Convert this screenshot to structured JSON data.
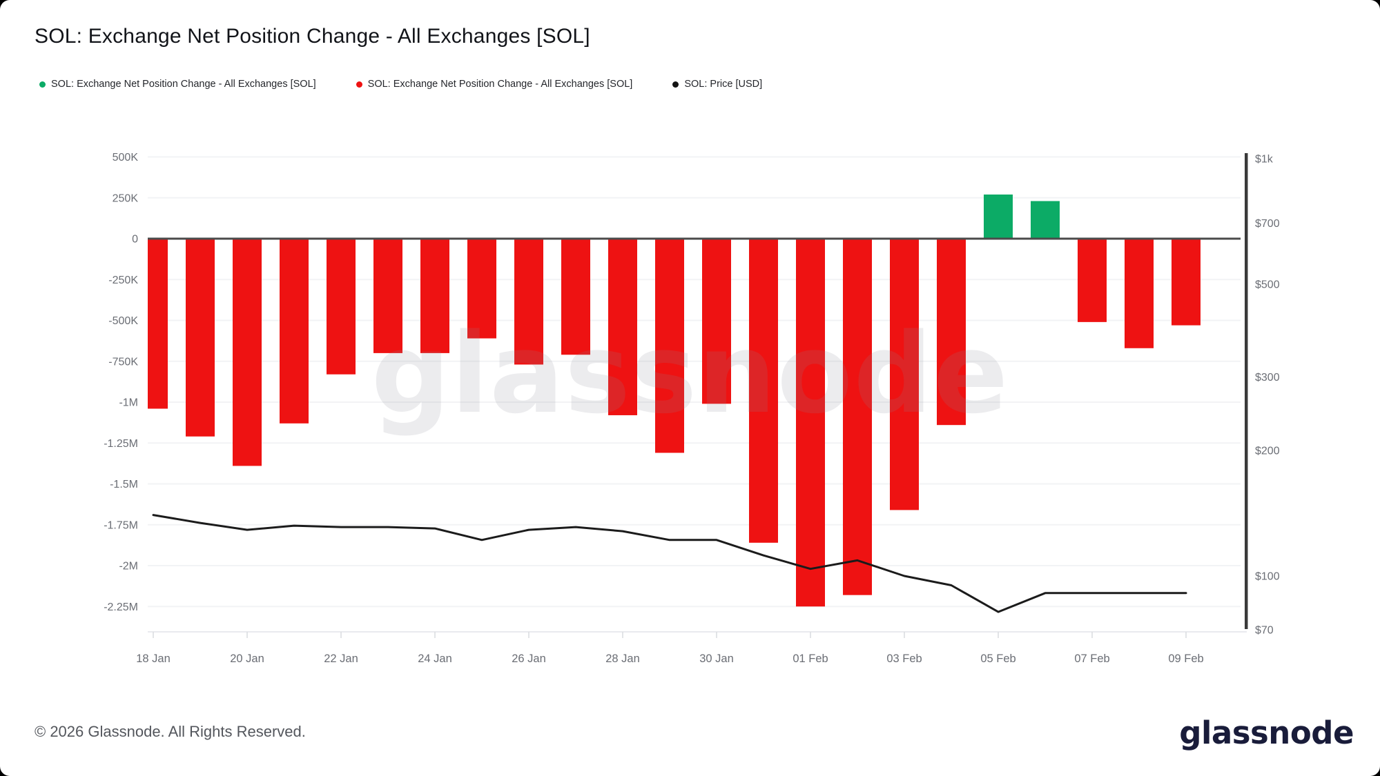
{
  "header": {
    "title": "SOL: Exchange Net Position Change - All Exchanges [SOL]"
  },
  "legend": {
    "items": [
      {
        "label": "SOL: Exchange Net Position Change - All Exchanges [SOL]",
        "color": "#0cab66"
      },
      {
        "label": "SOL: Exchange Net Position Change - All Exchanges [SOL]",
        "color": "#ee1212"
      },
      {
        "label": "SOL: Price [USD]",
        "color": "#141414"
      }
    ]
  },
  "chart_data": {
    "type": "bar",
    "subtype": "bar-and-line-combo",
    "title": "SOL: Exchange Net Position Change - All Exchanges [SOL]",
    "categories": [
      "18 Jan",
      "19 Jan",
      "20 Jan",
      "21 Jan",
      "22 Jan",
      "23 Jan",
      "24 Jan",
      "25 Jan",
      "26 Jan",
      "27 Jan",
      "28 Jan",
      "29 Jan",
      "30 Jan",
      "31 Jan",
      "01 Feb",
      "02 Feb",
      "03 Feb",
      "04 Feb",
      "05 Feb",
      "06 Feb",
      "07 Feb",
      "08 Feb",
      "09 Feb"
    ],
    "series": [
      {
        "name": "SOL: Exchange Net Position Change - All Exchanges [SOL]",
        "type": "bar",
        "axis": "left",
        "positive_color": "#0cab66",
        "negative_color": "#ee1212",
        "values": [
          -1040000,
          -1210000,
          -1390000,
          -1130000,
          -830000,
          -700000,
          -700000,
          -610000,
          -770000,
          -710000,
          -1080000,
          -1310000,
          -1010000,
          -1860000,
          -2250000,
          -2180000,
          -1660000,
          -1140000,
          270000,
          230000,
          -510000,
          -670000,
          -530000
        ]
      },
      {
        "name": "SOL: Price [USD]",
        "type": "line",
        "axis": "right",
        "color": "#1b1b1b",
        "values": [
          140,
          134,
          129,
          132,
          131,
          131,
          130,
          122,
          129,
          131,
          128,
          122,
          122,
          112,
          104,
          109,
          100,
          95,
          82,
          91,
          91,
          91,
          91
        ]
      }
    ],
    "left_axis": {
      "scale": "linear",
      "tick_labels": [
        "500K",
        "250K",
        "0",
        "-250K",
        "-500K",
        "-750K",
        "-1M",
        "-1.25M",
        "-1.5M",
        "-1.75M",
        "-2M",
        "-2.25M"
      ],
      "tick_values": [
        500000,
        250000,
        0,
        -250000,
        -500000,
        -750000,
        -1000000,
        -1250000,
        -1500000,
        -1750000,
        -2000000,
        -2250000
      ],
      "range": [
        -2400000,
        600000
      ]
    },
    "right_axis": {
      "scale": "log",
      "tick_labels": [
        "$1k",
        "$700",
        "$500",
        "$300",
        "$200",
        "$100",
        "$70"
      ],
      "tick_values": [
        1000,
        700,
        500,
        300,
        200,
        100,
        70
      ],
      "range": [
        70,
        1000
      ]
    },
    "x_tick_labels": [
      "18 Jan",
      "20 Jan",
      "22 Jan",
      "24 Jan",
      "26 Jan",
      "28 Jan",
      "30 Jan",
      "01 Feb",
      "03 Feb",
      "05 Feb",
      "07 Feb",
      "09 Feb"
    ],
    "grid": "horizontal-on",
    "legend_position": "top-left"
  },
  "watermark": {
    "text": "glassnode"
  },
  "footer": {
    "copyright": "© 2026 Glassnode. All Rights Reserved.",
    "logo_text": "glassnode"
  },
  "colors": {
    "positive_bar": "#0cab66",
    "negative_bar": "#ee1212",
    "price_line": "#1b1b1b",
    "zero_line": "#4b4b4b",
    "gridline": "#f2f3f5",
    "axis_text": "#6a6d74",
    "right_axis_bar": "#3a3a3a"
  }
}
